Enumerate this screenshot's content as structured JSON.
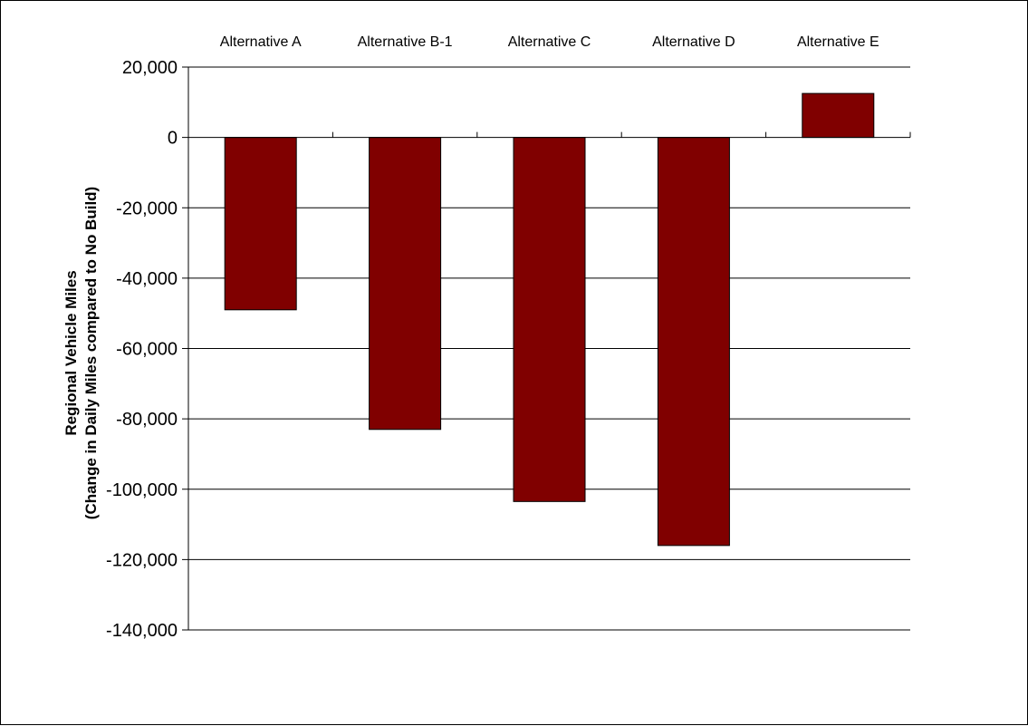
{
  "chart_data": {
    "type": "bar",
    "categories": [
      "Alternative A",
      "Alternative B-1",
      "Alternative C",
      "Alternative D",
      "Alternative E"
    ],
    "values": [
      -49000,
      -83000,
      -103500,
      -116000,
      12500
    ],
    "ylabel": [
      "Regional Vehicle Miles",
      "(Change in Daily Miles compared to No Build)"
    ],
    "ylim": [
      -140000,
      20000
    ],
    "yticks": [
      20000,
      0,
      -20000,
      -40000,
      -60000,
      -80000,
      -100000,
      -120000,
      -140000
    ],
    "ytick_labels": [
      "20,000",
      "0",
      "-20,000",
      "-40,000",
      "-60,000",
      "-80,000",
      "-100,000",
      "-120,000",
      "-140,000"
    ],
    "category_label_position": "top",
    "grid": true,
    "bar_color": "#800000",
    "legend": "none"
  }
}
